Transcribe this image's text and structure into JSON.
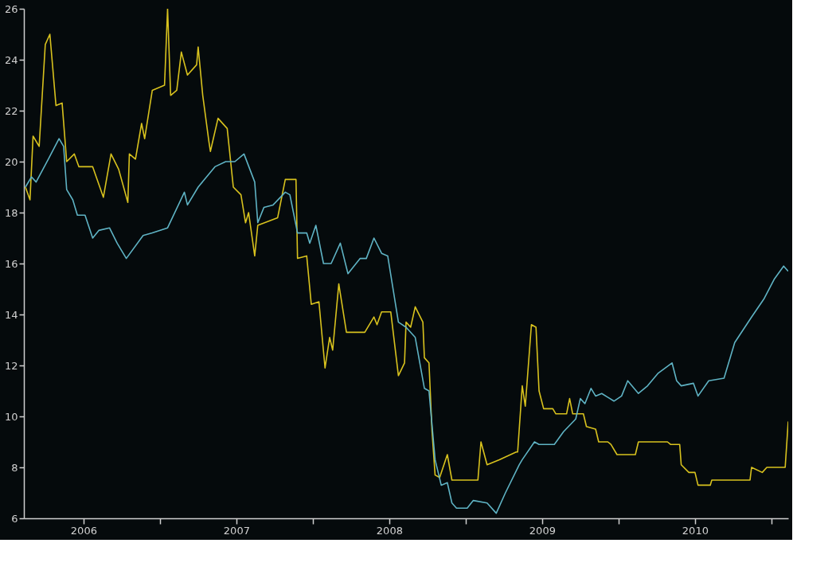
{
  "chart_data": {
    "type": "line",
    "xlim": [
      2006.11,
      2011.11
    ],
    "xticks": [
      {
        "value": 2006.5,
        "label": "2006"
      },
      {
        "value": 2007,
        "label": null
      },
      {
        "value": 2007.5,
        "label": "2007"
      },
      {
        "value": 2008,
        "label": null
      },
      {
        "value": 2008.5,
        "label": "2008"
      },
      {
        "value": 2009,
        "label": null
      },
      {
        "value": 2009.5,
        "label": "2009"
      },
      {
        "value": 2010,
        "label": null
      },
      {
        "value": 2010.5,
        "label": "2010"
      },
      {
        "value": 2011,
        "label": null
      }
    ],
    "ylim": [
      6,
      26
    ],
    "yticks": [
      6,
      8,
      10,
      12,
      14,
      16,
      18,
      20,
      22,
      24,
      26
    ],
    "grid": false,
    "marker": "none",
    "line_style": "solid",
    "series": [
      {
        "color": "#d8c21e",
        "x": [
          2006.12,
          2006.15,
          2006.17,
          2006.21,
          2006.25,
          2006.28,
          2006.32,
          2006.36,
          2006.39,
          2006.44,
          2006.47,
          2006.56,
          2006.63,
          2006.68,
          2006.73,
          2006.79,
          2006.8,
          2006.84,
          2006.88,
          2006.9,
          2006.95,
          2007.03,
          2007.05,
          2007.07,
          2007.11,
          2007.14,
          2007.18,
          2007.24,
          2007.25,
          2007.28,
          2007.32,
          2007.33,
          2007.38,
          2007.44,
          2007.48,
          2007.53,
          2007.56,
          2007.58,
          2007.62,
          2007.64,
          2007.77,
          2007.82,
          2007.89,
          2007.9,
          2007.96,
          2007.99,
          2008.04,
          2008.08,
          2008.11,
          2008.13,
          2008.17,
          2008.22,
          2008.34,
          2008.4,
          2008.42,
          2008.45,
          2008.51,
          2008.56,
          2008.6,
          2008.61,
          2008.64,
          2008.67,
          2008.72,
          2008.73,
          2008.76,
          2008.78,
          2008.8,
          2008.83,
          2008.88,
          2008.91,
          2009.08,
          2009.1,
          2009.14,
          2009.22,
          2009.33,
          2009.34,
          2009.37,
          2009.39,
          2009.43,
          2009.46,
          2009.48,
          2009.51,
          2009.57,
          2009.59,
          2009.66,
          2009.68,
          2009.7,
          2009.77,
          2009.79,
          2009.85,
          2009.87,
          2009.93,
          2009.95,
          2009.99,
          2010.11,
          2010.13,
          2010.32,
          2010.34,
          2010.4,
          2010.41,
          2010.46,
          2010.5,
          2010.52,
          2010.6,
          2010.61,
          2010.86,
          2010.87,
          2010.94,
          2010.97,
          2011.09,
          2011.11
        ],
        "values": [
          19.0,
          18.5,
          21.0,
          20.6,
          24.6,
          25.0,
          22.2,
          22.3,
          20.0,
          20.3,
          19.8,
          19.8,
          18.6,
          20.3,
          19.7,
          18.4,
          20.3,
          20.1,
          21.5,
          20.9,
          22.8,
          23.0,
          26.0,
          22.6,
          22.8,
          24.3,
          23.4,
          23.8,
          24.5,
          22.6,
          20.8,
          20.4,
          21.7,
          21.3,
          19.0,
          18.7,
          17.6,
          18.0,
          16.3,
          17.5,
          17.8,
          19.3,
          19.3,
          16.2,
          16.3,
          14.4,
          14.5,
          11.9,
          13.1,
          12.6,
          15.2,
          13.3,
          13.3,
          13.9,
          13.6,
          14.1,
          14.1,
          11.6,
          12.1,
          13.7,
          13.5,
          14.3,
          13.7,
          12.3,
          12.1,
          9.4,
          7.7,
          7.6,
          8.5,
          7.5,
          7.5,
          9.0,
          8.1,
          8.3,
          8.6,
          8.6,
          11.2,
          10.4,
          13.6,
          13.5,
          11.0,
          10.3,
          10.3,
          10.1,
          10.1,
          10.7,
          10.1,
          10.1,
          9.6,
          9.5,
          9.0,
          9.0,
          8.9,
          8.5,
          8.5,
          9.0,
          9.0,
          8.9,
          8.9,
          8.1,
          7.8,
          7.8,
          7.3,
          7.3,
          7.5,
          7.5,
          8.0,
          7.8,
          8.0,
          8.0,
          9.8
        ]
      },
      {
        "color": "#5fb3c4",
        "x": [
          2006.12,
          2006.16,
          2006.19,
          2006.27,
          2006.34,
          2006.37,
          2006.39,
          2006.43,
          2006.46,
          2006.51,
          2006.56,
          2006.6,
          2006.67,
          2006.72,
          2006.78,
          2006.89,
          2006.95,
          2007.05,
          2007.16,
          2007.18,
          2007.25,
          2007.36,
          2007.43,
          2007.49,
          2007.55,
          2007.62,
          2007.64,
          2007.68,
          2007.74,
          2007.82,
          2007.85,
          2007.9,
          2007.96,
          2007.98,
          2008.02,
          2008.07,
          2008.12,
          2008.18,
          2008.23,
          2008.31,
          2008.35,
          2008.4,
          2008.45,
          2008.49,
          2008.56,
          2008.61,
          2008.67,
          2008.73,
          2008.76,
          2008.8,
          2008.84,
          2008.88,
          2008.91,
          2008.94,
          2009.01,
          2009.05,
          2009.14,
          2009.2,
          2009.26,
          2009.35,
          2009.37,
          2009.45,
          2009.48,
          2009.58,
          2009.64,
          2009.72,
          2009.75,
          2009.78,
          2009.82,
          2009.85,
          2009.89,
          2009.97,
          2010.02,
          2010.06,
          2010.13,
          2010.19,
          2010.26,
          2010.35,
          2010.38,
          2010.41,
          2010.49,
          2010.52,
          2010.59,
          2010.69,
          2010.76,
          2010.87,
          2010.95,
          2011.02,
          2011.08,
          2011.11
        ],
        "values": [
          19.0,
          19.4,
          19.2,
          20.1,
          20.9,
          20.6,
          18.9,
          18.5,
          17.9,
          17.9,
          17.0,
          17.3,
          17.4,
          16.8,
          16.2,
          17.1,
          17.2,
          17.4,
          18.8,
          18.3,
          19.0,
          19.8,
          20.0,
          20.0,
          20.3,
          19.2,
          17.6,
          18.2,
          18.3,
          18.8,
          18.7,
          17.2,
          17.2,
          16.8,
          17.5,
          16.0,
          16.0,
          16.8,
          15.6,
          16.2,
          16.2,
          17.0,
          16.4,
          16.3,
          13.7,
          13.5,
          13.1,
          11.1,
          11.0,
          8.3,
          7.3,
          7.4,
          6.6,
          6.4,
          6.4,
          6.7,
          6.6,
          6.2,
          7.0,
          8.1,
          8.3,
          9.0,
          8.9,
          8.9,
          9.4,
          9.9,
          10.7,
          10.5,
          11.1,
          10.8,
          10.9,
          10.6,
          10.8,
          11.4,
          10.9,
          11.2,
          11.7,
          12.1,
          11.4,
          11.2,
          11.3,
          10.8,
          11.4,
          11.5,
          12.9,
          13.9,
          14.6,
          15.4,
          15.9,
          15.7
        ]
      }
    ]
  }
}
